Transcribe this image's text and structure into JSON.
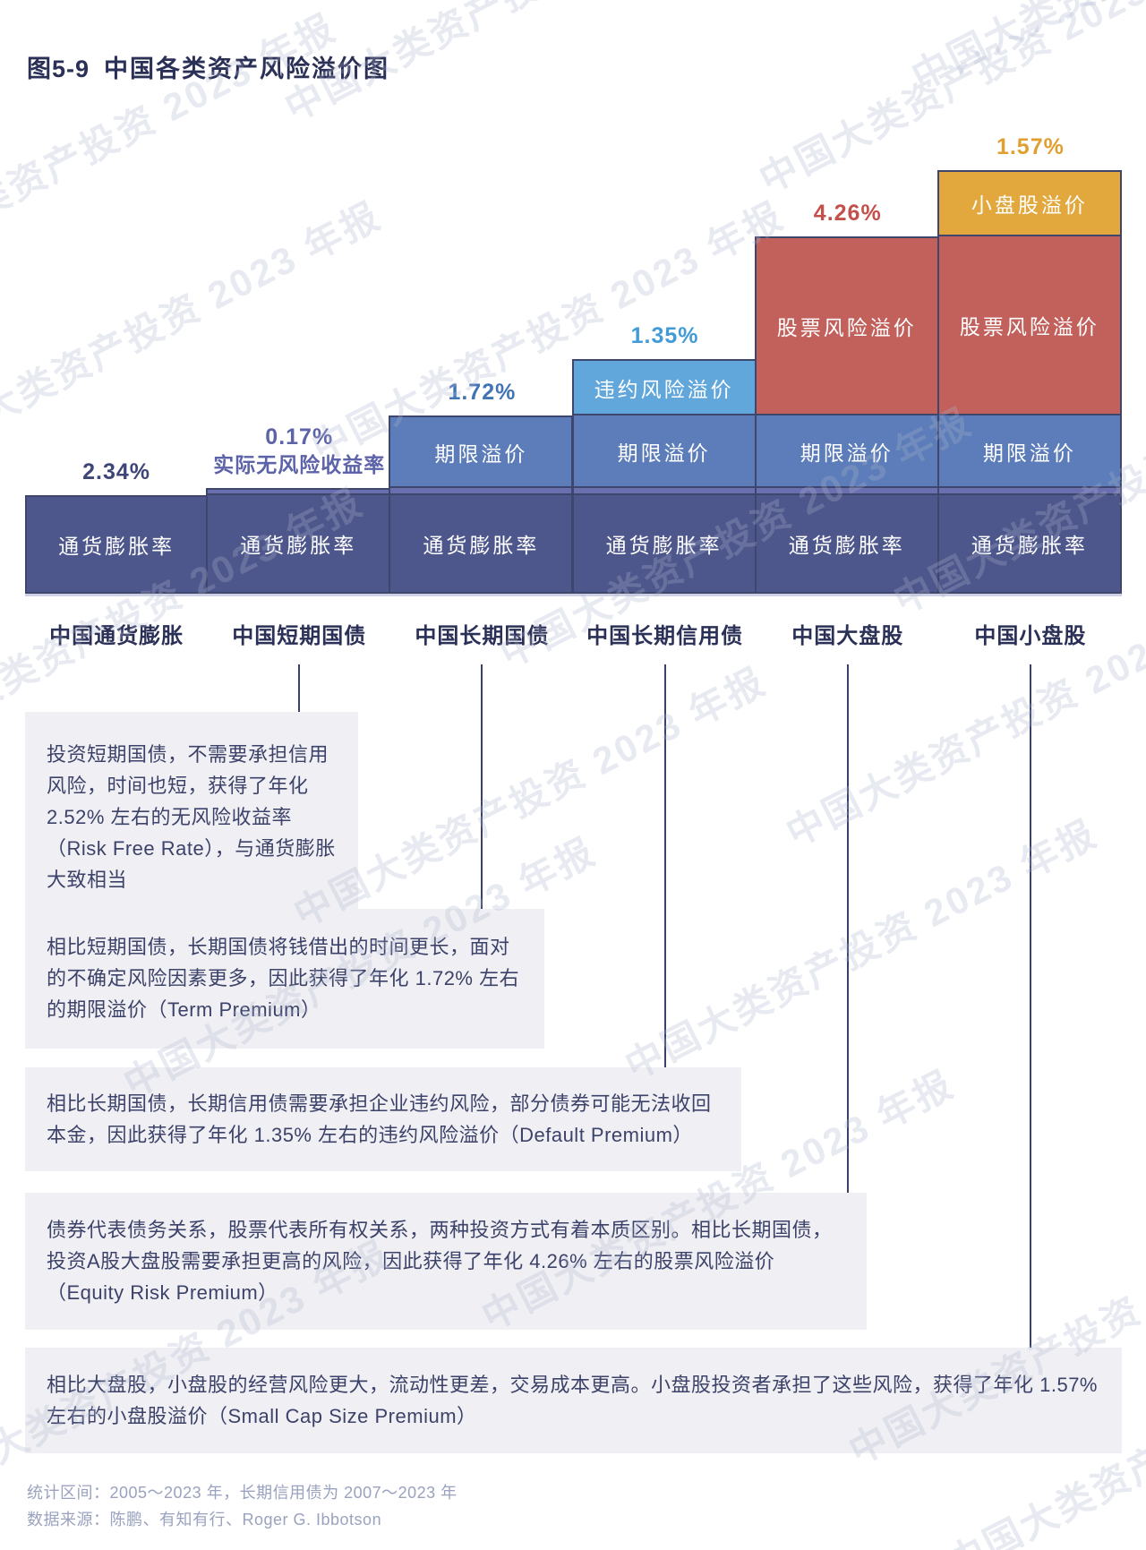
{
  "title": {
    "prefix": "图5-9",
    "text": "中国各类资产风险溢价图"
  },
  "watermark": {
    "text": "中国大类资产投资 2023 年报"
  },
  "chart_data": {
    "type": "stacked_bar",
    "title": "图5-9 中国各类资产风险溢价图",
    "unit": "%",
    "ylim": [
      0,
      10.06
    ],
    "grid": false,
    "legend": false,
    "categories": [
      "中国通货膨胀",
      "中国短期国债",
      "中国长期国债",
      "中国长期信用债",
      "中国大盘股",
      "中国小盘股"
    ],
    "series": [
      {
        "name": "通货膨胀率",
        "value": 2.34,
        "color": "#4e578c"
      },
      {
        "name": "实际无风险收益率",
        "value": 0.17,
        "color": "#6a6fb0"
      },
      {
        "name": "期限溢价",
        "value": 1.72,
        "color": "#5c7db9"
      },
      {
        "name": "违约风险溢价",
        "value": 1.35,
        "color": "#61a7dc"
      },
      {
        "name": "股票风险溢价",
        "value": 4.26,
        "color": "#c2605c"
      },
      {
        "name": "小盘股溢价",
        "value": 1.57,
        "color": "#e2a83d"
      }
    ],
    "bars": [
      {
        "category": "中国通货膨胀",
        "top_label": {
          "lines": [
            "2.34%"
          ],
          "color": "#3d4677"
        },
        "blocks": [
          {
            "series": 0,
            "show_label": true
          }
        ]
      },
      {
        "category": "中国短期国债",
        "top_label": {
          "lines": [
            "0.17%",
            "实际无风险收益率"
          ],
          "color": "#5d63a8"
        },
        "blocks": [
          {
            "series": 0,
            "show_label": true
          },
          {
            "series": 1,
            "show_label": false
          }
        ]
      },
      {
        "category": "中国长期国债",
        "top_label": {
          "lines": [
            "1.72%"
          ],
          "color": "#4273b4"
        },
        "blocks": [
          {
            "series": 0,
            "show_label": true
          },
          {
            "series": 1,
            "show_label": false
          },
          {
            "series": 2,
            "show_label": true
          }
        ]
      },
      {
        "category": "中国长期信用债",
        "top_label": {
          "lines": [
            "1.35%"
          ],
          "color": "#429bd6"
        },
        "blocks": [
          {
            "series": 0,
            "show_label": true
          },
          {
            "series": 1,
            "show_label": false
          },
          {
            "series": 2,
            "show_label": true
          },
          {
            "series": 3,
            "show_label": true
          }
        ]
      },
      {
        "category": "中国大盘股",
        "top_label": {
          "lines": [
            "4.26%"
          ],
          "color": "#c4504b"
        },
        "blocks": [
          {
            "series": 0,
            "show_label": true
          },
          {
            "series": 1,
            "show_label": false
          },
          {
            "series": 2,
            "show_label": true
          },
          {
            "series": 4,
            "show_label": true
          }
        ]
      },
      {
        "category": "中国小盘股",
        "top_label": {
          "lines": [
            "1.57%"
          ],
          "color": "#e0a02f"
        },
        "blocks": [
          {
            "series": 0,
            "show_label": true
          },
          {
            "series": 1,
            "show_label": false
          },
          {
            "series": 2,
            "show_label": true
          },
          {
            "series": 4,
            "show_label": true
          },
          {
            "series": 5,
            "show_label": true
          }
        ]
      }
    ]
  },
  "annotations": [
    {
      "text": "投资短期国债，不需要承担信用风险，时间也短，获得了年化 2.52% 左右的无风险收益率（Risk Free Rate），与通货膨胀大致相当"
    },
    {
      "text": "相比短期国债，长期国债将钱借出的时间更长，面对的不确定风险因素更多，因此获得了年化 1.72% 左右的期限溢价（Term Premium）"
    },
    {
      "text": "相比长期国债，长期信用债需要承担企业违约风险，部分债券可能无法收回本金，因此获得了年化 1.35% 左右的违约风险溢价（Default Premium）"
    },
    {
      "text": "债券代表债务关系，股票代表所有权关系，两种投资方式有着本质区别。相比长期国债，投资A股大盘股需要承担更高的风险，因此获得了年化 4.26% 左右的股票风险溢价（Equity Risk Premium）"
    },
    {
      "text": "相比大盘股，小盘股的经营风险更大，流动性更差，交易成本更高。小盘股投资者承担了这些风险，获得了年化 1.57% 左右的小盘股溢价（Small Cap Size Premium）"
    }
  ],
  "footer": {
    "line1": "统计区间：2005～2023 年，长期信用债为 2007～2023 年",
    "line2": "数据来源：陈鹏、有知有行、Roger G. Ibbotson"
  }
}
